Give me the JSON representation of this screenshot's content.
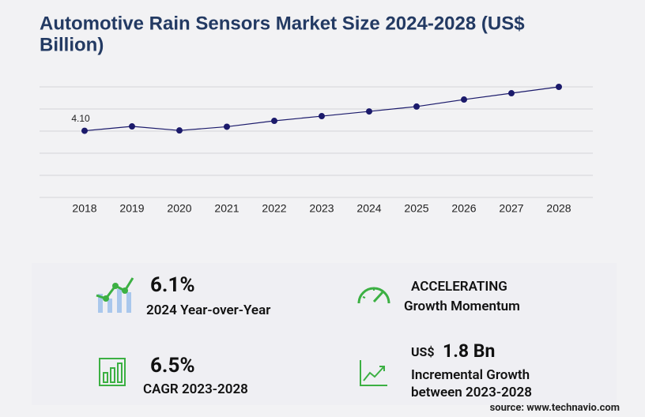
{
  "chart_data": {
    "type": "line",
    "title": "Automotive Rain Sensors Market Size 2024-2028 (US$ Billion)",
    "categories": [
      "2018",
      "2019",
      "2020",
      "2021",
      "2022",
      "2023",
      "2024",
      "2025",
      "2026",
      "2027",
      "2028"
    ],
    "values": [
      4.1,
      4.37,
      4.12,
      4.35,
      4.71,
      5.0,
      5.29,
      5.59,
      6.02,
      6.41,
      6.8
    ],
    "value_labels": [
      "4.10",
      null,
      null,
      null,
      null,
      null,
      null,
      null,
      null,
      null,
      null
    ],
    "color": "#1b1a6b",
    "ylim": [
      0,
      6.8
    ],
    "grid": true
  },
  "stats": {
    "yoy": {
      "value": "6.1%",
      "label": "2024 Year-over-Year"
    },
    "momentum": {
      "value": "ACCELERATING",
      "label": "Growth Momentum"
    },
    "cagr": {
      "value": "6.5%",
      "label": "CAGR 2023-2028"
    },
    "incremental": {
      "unit": "US$",
      "value": "1.8 Bn",
      "label1": "Incremental Growth",
      "label2": "between 2023-2028"
    }
  },
  "source": "source: www.technavio.com"
}
